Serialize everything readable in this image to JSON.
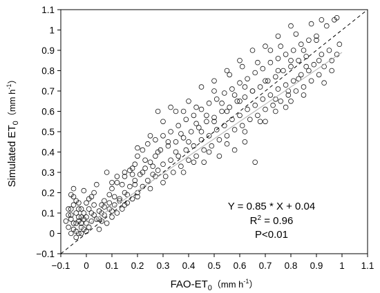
{
  "chart_data": {
    "type": "scatter",
    "xlabel": {
      "main": "FAO-ET",
      "sub": "0",
      "unit": "（mm h",
      "unit_sup": "-1",
      "unit_end": "）"
    },
    "ylabel": {
      "main": "Simulated ET",
      "sub": "0",
      "unit": "（mm h",
      "unit_sup": "-1",
      "unit_end": "）"
    },
    "xlim": [
      -0.1,
      1.1
    ],
    "ylim": [
      -0.1,
      1.1
    ],
    "x_ticks": [
      "−0.1",
      "0",
      "0.1",
      "0.2",
      "0.3",
      "0.4",
      "0.5",
      "0.6",
      "0.7",
      "0.8",
      "0.9",
      "1",
      "1.1"
    ],
    "y_ticks": [
      "−0.1",
      "0",
      "0.1",
      "0.2",
      "0.3",
      "0.4",
      "0.5",
      "0.6",
      "0.7",
      "0.8",
      "0.9",
      "1",
      "1.1"
    ],
    "reference_line": {
      "style": "dashed",
      "slope": 1,
      "intercept": 0
    },
    "fit_line": {
      "slope": 0.85,
      "intercept": 0.04
    },
    "annotations": {
      "equation": "Y = 0.85 * X + 0.04",
      "r2_prefix": "R",
      "r2_sup": "2",
      "r2_suffix": " = 0.96",
      "pvalue": "P<0.01"
    },
    "marker": "open-circle",
    "points": [
      [
        -0.06,
        0.0
      ],
      [
        -0.05,
        0.02
      ],
      [
        -0.04,
        0.01
      ],
      [
        -0.07,
        0.03
      ],
      [
        -0.03,
        0.0
      ],
      [
        -0.05,
        0.05
      ],
      [
        -0.06,
        0.07
      ],
      [
        -0.04,
        0.1
      ],
      [
        -0.07,
        0.12
      ],
      [
        -0.05,
        0.14
      ],
      [
        -0.03,
        0.06
      ],
      [
        -0.02,
        0.03
      ],
      [
        -0.06,
        0.09
      ],
      [
        -0.08,
        0.06
      ],
      [
        -0.04,
        0.16
      ],
      [
        -0.06,
        0.19
      ],
      [
        -0.03,
        0.12
      ],
      [
        -0.05,
        0.22
      ],
      [
        -0.02,
        0.0
      ],
      [
        -0.04,
        -0.02
      ],
      [
        -0.01,
        0.02
      ],
      [
        0.0,
        0.01
      ],
      [
        -0.02,
        0.08
      ],
      [
        0.0,
        0.05
      ],
      [
        0.01,
        0.03
      ],
      [
        0.02,
        0.06
      ],
      [
        -0.01,
        0.1
      ],
      [
        0.01,
        0.12
      ],
      [
        0.0,
        0.15
      ],
      [
        0.03,
        0.09
      ],
      [
        0.02,
        0.18
      ],
      [
        0.04,
        0.07
      ],
      [
        0.05,
        0.11
      ],
      [
        0.03,
        0.2
      ],
      [
        0.06,
        0.14
      ],
      [
        0.01,
        0.17
      ],
      [
        -0.01,
        0.21
      ],
      [
        0.04,
        0.24
      ],
      [
        0.05,
        0.02
      ],
      [
        0.06,
        0.06
      ],
      [
        0.07,
        0.09
      ],
      [
        0.08,
        0.05
      ],
      [
        0.09,
        0.12
      ],
      [
        0.07,
        0.16
      ],
      [
        0.1,
        0.08
      ],
      [
        0.09,
        0.19
      ],
      [
        0.11,
        0.14
      ],
      [
        0.12,
        0.1
      ],
      [
        0.1,
        0.22
      ],
      [
        0.13,
        0.17
      ],
      [
        0.14,
        0.12
      ],
      [
        0.12,
        0.25
      ],
      [
        0.15,
        0.2
      ],
      [
        0.16,
        0.15
      ],
      [
        0.15,
        0.28
      ],
      [
        0.17,
        0.23
      ],
      [
        0.18,
        0.17
      ],
      [
        0.17,
        0.31
      ],
      [
        0.19,
        0.26
      ],
      [
        0.2,
        0.2
      ],
      [
        0.19,
        0.34
      ],
      [
        0.21,
        0.29
      ],
      [
        0.22,
        0.23
      ],
      [
        0.2,
        0.38
      ],
      [
        0.23,
        0.32
      ],
      [
        0.24,
        0.26
      ],
      [
        0.22,
        0.41
      ],
      [
        0.25,
        0.35
      ],
      [
        0.26,
        0.29
      ],
      [
        0.24,
        0.44
      ],
      [
        0.27,
        0.38
      ],
      [
        0.28,
        0.31
      ],
      [
        0.27,
        0.46
      ],
      [
        0.29,
        0.41
      ],
      [
        0.3,
        0.34
      ],
      [
        0.31,
        0.28
      ],
      [
        0.3,
        0.48
      ],
      [
        0.32,
        0.43
      ],
      [
        0.33,
        0.36
      ],
      [
        0.34,
        0.3
      ],
      [
        0.33,
        0.5
      ],
      [
        0.35,
        0.45
      ],
      [
        0.36,
        0.38
      ],
      [
        0.37,
        0.33
      ],
      [
        0.36,
        0.53
      ],
      [
        0.38,
        0.47
      ],
      [
        0.39,
        0.41
      ],
      [
        0.4,
        0.36
      ],
      [
        0.39,
        0.56
      ],
      [
        0.41,
        0.5
      ],
      [
        0.42,
        0.43
      ],
      [
        0.43,
        0.38
      ],
      [
        0.42,
        0.58
      ],
      [
        0.44,
        0.52
      ],
      [
        0.45,
        0.46
      ],
      [
        0.46,
        0.41
      ],
      [
        0.45,
        0.61
      ],
      [
        0.47,
        0.55
      ],
      [
        0.48,
        0.48
      ],
      [
        0.49,
        0.43
      ],
      [
        0.48,
        0.64
      ],
      [
        0.5,
        0.57
      ],
      [
        0.51,
        0.51
      ],
      [
        0.52,
        0.46
      ],
      [
        0.51,
        0.66
      ],
      [
        0.53,
        0.6
      ],
      [
        0.54,
        0.53
      ],
      [
        0.55,
        0.48
      ],
      [
        0.54,
        0.69
      ],
      [
        0.56,
        0.62
      ],
      [
        0.57,
        0.56
      ],
      [
        0.58,
        0.51
      ],
      [
        0.57,
        0.71
      ],
      [
        0.59,
        0.65
      ],
      [
        0.6,
        0.58
      ],
      [
        0.61,
        0.53
      ],
      [
        0.6,
        0.74
      ],
      [
        0.62,
        0.67
      ],
      [
        0.63,
        0.61
      ],
      [
        0.64,
        0.56
      ],
      [
        0.63,
        0.76
      ],
      [
        0.65,
        0.7
      ],
      [
        0.66,
        0.63
      ],
      [
        0.67,
        0.58
      ],
      [
        0.66,
        0.79
      ],
      [
        0.68,
        0.72
      ],
      [
        0.69,
        0.66
      ],
      [
        0.7,
        0.61
      ],
      [
        0.69,
        0.81
      ],
      [
        0.71,
        0.75
      ],
      [
        0.72,
        0.68
      ],
      [
        0.73,
        0.63
      ],
      [
        0.72,
        0.84
      ],
      [
        0.74,
        0.77
      ],
      [
        0.75,
        0.71
      ],
      [
        0.76,
        0.65
      ],
      [
        0.75,
        0.86
      ],
      [
        0.77,
        0.8
      ],
      [
        0.78,
        0.73
      ],
      [
        0.79,
        0.68
      ],
      [
        0.78,
        0.88
      ],
      [
        0.8,
        0.82
      ],
      [
        0.81,
        0.75
      ],
      [
        0.82,
        0.7
      ],
      [
        0.81,
        0.9
      ],
      [
        0.83,
        0.85
      ],
      [
        0.84,
        0.78
      ],
      [
        0.85,
        0.72
      ],
      [
        0.84,
        0.93
      ],
      [
        0.86,
        0.87
      ],
      [
        0.87,
        0.8
      ],
      [
        0.88,
        0.75
      ],
      [
        0.9,
        0.95
      ],
      [
        0.89,
        0.83
      ],
      [
        0.91,
        0.78
      ],
      [
        0.92,
        0.88
      ],
      [
        0.93,
        0.82
      ],
      [
        0.95,
        0.9
      ],
      [
        0.96,
        0.85
      ],
      [
        0.98,
        0.88
      ],
      [
        0.97,
        1.05
      ],
      [
        0.98,
        1.06
      ],
      [
        0.94,
        1.02
      ],
      [
        0.9,
        0.97
      ],
      [
        0.87,
        0.95
      ],
      [
        0.99,
        0.93
      ],
      [
        0.93,
        0.74
      ],
      [
        0.96,
        0.8
      ],
      [
        0.85,
        0.68
      ],
      [
        0.8,
        0.65
      ],
      [
        0.2,
        0.42
      ],
      [
        0.25,
        0.48
      ],
      [
        0.3,
        0.55
      ],
      [
        0.35,
        0.6
      ],
      [
        0.4,
        0.65
      ],
      [
        0.45,
        0.72
      ],
      [
        0.5,
        0.75
      ],
      [
        0.55,
        0.8
      ],
      [
        0.6,
        0.85
      ],
      [
        0.65,
        0.9
      ],
      [
        0.7,
        0.92
      ],
      [
        0.75,
        0.97
      ],
      [
        0.8,
        1.02
      ],
      [
        0.28,
        0.6
      ],
      [
        0.33,
        0.62
      ],
      [
        0.18,
        0.32
      ],
      [
        0.15,
        0.3
      ],
      [
        0.12,
        0.28
      ],
      [
        0.1,
        0.25
      ],
      [
        0.08,
        0.3
      ],
      [
        0.42,
        0.35
      ],
      [
        0.48,
        0.4
      ],
      [
        0.55,
        0.44
      ],
      [
        0.62,
        0.5
      ],
      [
        0.68,
        0.55
      ],
      [
        0.74,
        0.6
      ],
      [
        0.78,
        0.62
      ],
      [
        0.52,
        0.38
      ],
      [
        0.46,
        0.35
      ],
      [
        0.38,
        0.3
      ],
      [
        0.3,
        0.25
      ],
      [
        0.25,
        0.22
      ],
      [
        0.2,
        0.18
      ],
      [
        0.15,
        0.14
      ],
      [
        0.1,
        0.11
      ],
      [
        0.05,
        0.07
      ],
      [
        0.35,
        0.4
      ],
      [
        0.4,
        0.45
      ],
      [
        0.45,
        0.5
      ],
      [
        0.5,
        0.55
      ],
      [
        0.55,
        0.6
      ],
      [
        0.6,
        0.65
      ],
      [
        0.65,
        0.7
      ],
      [
        0.7,
        0.75
      ],
      [
        0.75,
        0.8
      ],
      [
        0.8,
        0.85
      ],
      [
        0.85,
        0.9
      ],
      [
        0.62,
        0.72
      ],
      [
        0.58,
        0.68
      ],
      [
        0.53,
        0.64
      ],
      [
        0.47,
        0.58
      ],
      [
        0.43,
        0.54
      ],
      [
        0.37,
        0.49
      ],
      [
        0.32,
        0.45
      ],
      [
        0.28,
        0.4
      ],
      [
        0.23,
        0.36
      ],
      [
        0.18,
        0.29
      ],
      [
        0.14,
        0.24
      ],
      [
        0.11,
        0.18
      ],
      [
        0.07,
        0.13
      ],
      [
        0.66,
        0.35
      ],
      [
        0.58,
        0.41
      ],
      [
        0.62,
        0.45
      ],
      [
        0.38,
        0.6
      ],
      [
        0.43,
        0.62
      ],
      [
        0.5,
        0.7
      ],
      [
        0.56,
        0.78
      ],
      [
        0.61,
        0.82
      ],
      [
        0.67,
        0.84
      ],
      [
        0.72,
        0.9
      ],
      [
        0.76,
        0.92
      ],
      [
        0.82,
        0.98
      ],
      [
        0.88,
        1.03
      ],
      [
        0.92,
        1.05
      ],
      [
        0.7,
        0.55
      ],
      [
        0.74,
        0.66
      ],
      [
        0.79,
        0.7
      ],
      [
        0.83,
        0.76
      ],
      [
        0.86,
        0.82
      ],
      [
        0.91,
        0.85
      ],
      [
        0.27,
        0.28
      ],
      [
        0.26,
        0.33
      ],
      [
        0.22,
        0.3
      ],
      [
        0.19,
        0.24
      ],
      [
        0.16,
        0.19
      ],
      [
        0.13,
        0.16
      ],
      [
        0.09,
        0.15
      ],
      [
        0.06,
        0.1
      ],
      [
        0.03,
        0.14
      ],
      [
        0.0,
        0.08
      ],
      [
        -0.02,
        0.12
      ],
      [
        -0.03,
        0.15
      ],
      [
        -0.05,
        0.18
      ],
      [
        -0.06,
        0.12
      ],
      [
        -0.07,
        0.09
      ],
      [
        -0.04,
        0.05
      ],
      [
        -0.03,
        0.08
      ],
      [
        -0.02,
        0.05
      ],
      [
        -0.01,
        0.07
      ],
      [
        0.02,
        0.1
      ]
    ]
  }
}
